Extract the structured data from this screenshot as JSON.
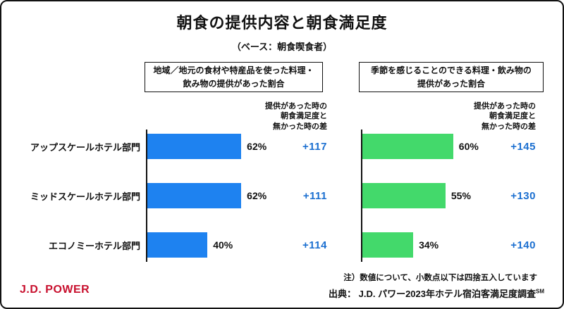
{
  "page": {
    "title": "朝食の提供内容と朝食満足度",
    "subtitle": "（ベース：朝食喫食者）",
    "note": "注）数値について、小数点以下は四捨五入しています",
    "source_prefix": "出典： J.D. パワー2023年ホテル宿泊客満足度調査",
    "source_sup": "SM",
    "logo": "J.D. POWER"
  },
  "colors": {
    "left_bar": "#1e82f0",
    "right_bar": "#43d96b",
    "diff_text": "#1b6fd0",
    "logo_red": "#c8102e"
  },
  "categories": [
    "アップスケールホテル部門",
    "ミッドスケールホテル部門",
    "エコノミーホテル部門"
  ],
  "diff_header_lines": [
    "提供があった時の",
    "朝食満足度と",
    "無かった時の差"
  ],
  "left_chart": {
    "header_line1": "地域／地元の食材や特産品を使った料理・",
    "header_line2": "飲み物の提供があった割合",
    "bars": [
      {
        "value": 62,
        "label": "62%",
        "diff": "+117"
      },
      {
        "value": 62,
        "label": "62%",
        "diff": "+111"
      },
      {
        "value": 40,
        "label": "40%",
        "diff": "+114"
      }
    ]
  },
  "right_chart": {
    "header_line1": "季節を感じることのできる料理・飲み物の",
    "header_line2": "提供があった割合",
    "bars": [
      {
        "value": 60,
        "label": "60%",
        "diff": "+145"
      },
      {
        "value": 55,
        "label": "55%",
        "diff": "+130"
      },
      {
        "value": 34,
        "label": "34%",
        "diff": "+140"
      }
    ]
  },
  "chart_data": [
    {
      "type": "bar",
      "orientation": "horizontal",
      "title": "地域／地元の食材や特産品を使った料理・飲み物の提供があった割合",
      "categories": [
        "アップスケールホテル部門",
        "ミッドスケールホテル部門",
        "エコノミーホテル部門"
      ],
      "values": [
        62,
        62,
        40
      ],
      "unit": "%",
      "xlim": [
        0,
        100
      ],
      "bar_color": "#1e82f0",
      "secondary_metric": {
        "label": "提供があった時の朝食満足度と無かった時の差",
        "values": [
          117,
          111,
          114
        ]
      }
    },
    {
      "type": "bar",
      "orientation": "horizontal",
      "title": "季節を感じることのできる料理・飲み物の提供があった割合",
      "categories": [
        "アップスケールホテル部門",
        "ミッドスケールホテル部門",
        "エコノミーホテル部門"
      ],
      "values": [
        60,
        55,
        34
      ],
      "unit": "%",
      "xlim": [
        0,
        100
      ],
      "bar_color": "#43d96b",
      "secondary_metric": {
        "label": "提供があった時の朝食満足度と無かった時の差",
        "values": [
          145,
          130,
          140
        ]
      }
    }
  ]
}
